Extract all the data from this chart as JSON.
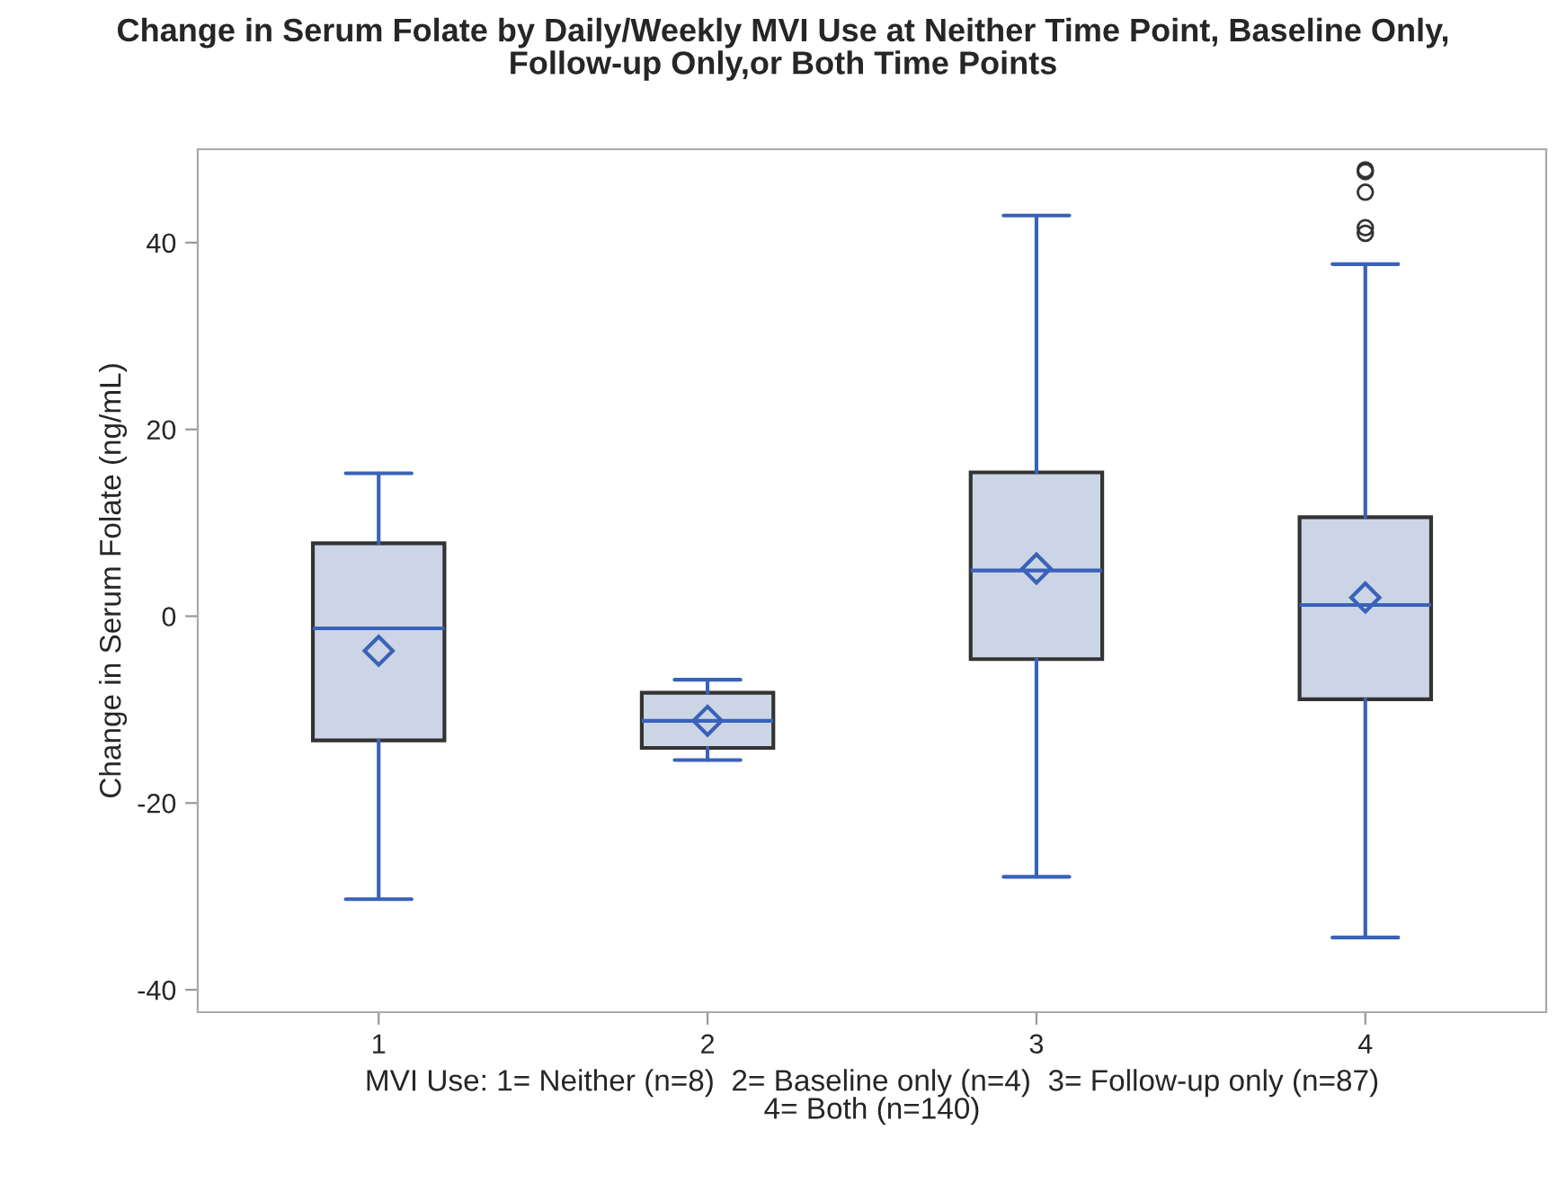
{
  "chart_data": {
    "type": "box",
    "title": "Change in Serum Folate by Daily/Weekly MVI Use at Neither Time Point, Baseline Only,\nFollow-up Only,or Both Time Points",
    "xlabel": "MVI Use: 1= Neither (n=8)  2= Baseline only (n=4)  3= Follow-up only (n=87)\n4= Both (n=140)",
    "ylabel": "Change in Serum Folate (ng/mL)",
    "categories": [
      "1",
      "2",
      "3",
      "4"
    ],
    "series": [
      {
        "color": "#cbd5e5",
        "boxes": [
          {
            "low": -30.3,
            "q1": -13.3,
            "median": -1.3,
            "q3": 7.8,
            "high": 15.3,
            "mean": -3.7
          },
          {
            "low": -15.4,
            "q1": -14.1,
            "median": -11.2,
            "q3": -8.2,
            "high": -6.8,
            "mean": -11.2
          },
          {
            "low": -27.9,
            "q1": -4.6,
            "median": 4.9,
            "q3": 15.4,
            "high": 42.9,
            "mean": 5.1
          },
          {
            "low": -34.4,
            "q1": -8.9,
            "median": 1.2,
            "q3": 10.6,
            "high": 37.7,
            "mean": 2.0,
            "outliers": [
              41.0,
              41.6,
              45.4,
              47.6,
              47.8
            ]
          }
        ]
      }
    ],
    "ylim": [
      -42.4,
      50
    ],
    "yticks": [
      -40,
      -20,
      0,
      20,
      40
    ],
    "grid": false
  }
}
